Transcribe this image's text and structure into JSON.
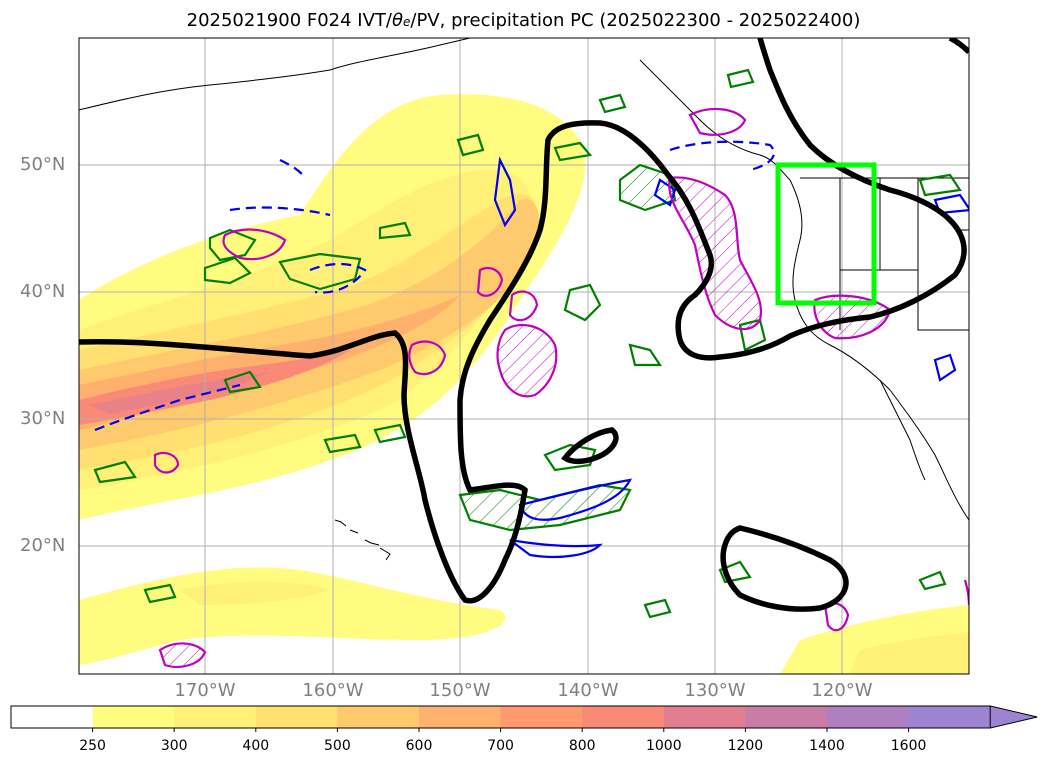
{
  "title": {
    "prefix": "2025021900 F024 IVT/",
    "theta": "θ",
    "theta_sub": "e",
    "suffix": "/PV, precipitation PC (2025022300 - 2025022400)"
  },
  "latitude_labels": [
    "50°N",
    "40°N",
    "30°N",
    "20°N"
  ],
  "longitude_labels": [
    "170°W",
    "160°W",
    "150°W",
    "140°W",
    "130°W",
    "120°W"
  ],
  "colorbar": {
    "ticks": [
      "250",
      "300",
      "400",
      "500",
      "600",
      "700",
      "800",
      "1000",
      "1200",
      "1400",
      "1600"
    ],
    "colors": [
      "#ffffff",
      "#fffc80",
      "#fff078",
      "#ffe070",
      "#ffc96d",
      "#ffb06c",
      "#ff9a6f",
      "#f98a78",
      "#e27e8f",
      "#c97ca6",
      "#ae80c0",
      "#9c84d2"
    ],
    "extend": "max"
  },
  "overlay_colors": {
    "pv_contour": "#000000",
    "green_contour": "#008000",
    "blue_contour": "#0000ee",
    "magenta_contour": "#c000c0",
    "focus_box": "#00ff00"
  }
}
